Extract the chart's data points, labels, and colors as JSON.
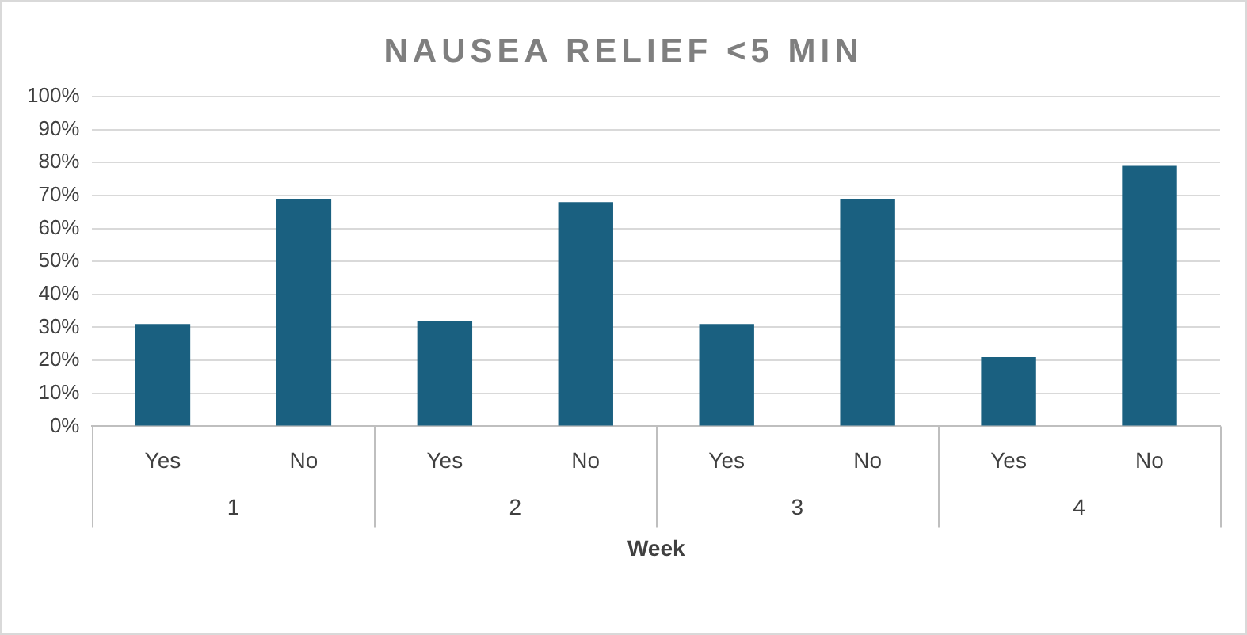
{
  "chart_data": {
    "type": "bar",
    "title": "NAUSEA RELIEF <5 MIN",
    "xlabel": "Week",
    "categories": [
      "Yes",
      "No",
      "Yes",
      "No",
      "Yes",
      "No",
      "Yes",
      "No"
    ],
    "values": [
      31,
      69,
      32,
      68,
      31,
      69,
      21,
      79
    ],
    "color": "#1a6080",
    "ylim": [
      0,
      100
    ],
    "yticks": [
      {
        "value": 0,
        "label": "0%"
      },
      {
        "value": 10,
        "label": "10%"
      },
      {
        "value": 20,
        "label": "20%"
      },
      {
        "value": 30,
        "label": "30%"
      },
      {
        "value": 40,
        "label": "40%"
      },
      {
        "value": 50,
        "label": "50%"
      },
      {
        "value": 60,
        "label": "60%"
      },
      {
        "value": 70,
        "label": "70%"
      },
      {
        "value": 80,
        "label": "80%"
      },
      {
        "value": 90,
        "label": "90%"
      },
      {
        "value": 100,
        "label": "100%"
      }
    ],
    "annotations": [
      "1",
      "2",
      "3",
      "4"
    ],
    "grid": "y",
    "legend": false
  }
}
